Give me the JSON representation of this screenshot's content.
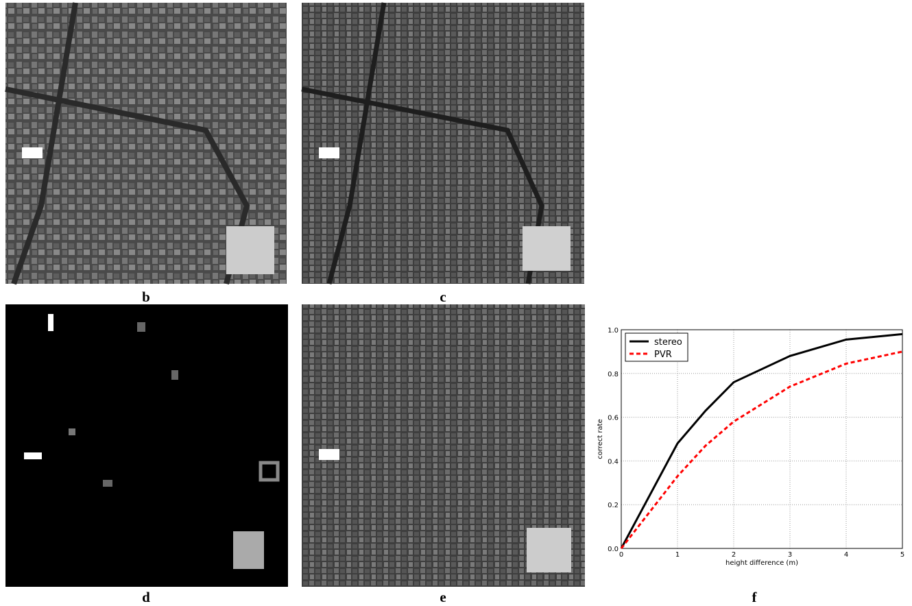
{
  "panels": [
    {
      "label": "b"
    },
    {
      "label": "c"
    },
    {
      "label": "d"
    },
    {
      "label": "e"
    },
    {
      "label": "f"
    }
  ],
  "chart_data": {
    "type": "line",
    "x": [
      0,
      1,
      1.5,
      2,
      3,
      4,
      5
    ],
    "series": [
      {
        "name": "stereo",
        "color": "#000000",
        "values": [
          0,
          0.48,
          0.63,
          0.76,
          0.88,
          0.955,
          0.98
        ]
      },
      {
        "name": "PVR",
        "color": "#ff0000",
        "values": [
          0,
          0.33,
          0.47,
          0.58,
          0.74,
          0.845,
          0.9
        ]
      }
    ],
    "xlabel": "height difference (m)",
    "ylabel": "correct rate",
    "xlim": [
      0,
      5
    ],
    "ylim": [
      0,
      1
    ],
    "xticks": [
      0,
      1,
      2,
      3,
      4,
      5
    ],
    "yticks": [
      {
        "value": 0,
        "label": "0.0"
      },
      {
        "value": 0.2,
        "label": "0.2"
      },
      {
        "value": 0.4,
        "label": "0.4"
      },
      {
        "value": 0.6,
        "label": "0.6"
      },
      {
        "value": 0.8,
        "label": "0.8"
      },
      {
        "value": 1,
        "label": "1.0"
      }
    ],
    "grid": true,
    "legend": "upper left"
  }
}
